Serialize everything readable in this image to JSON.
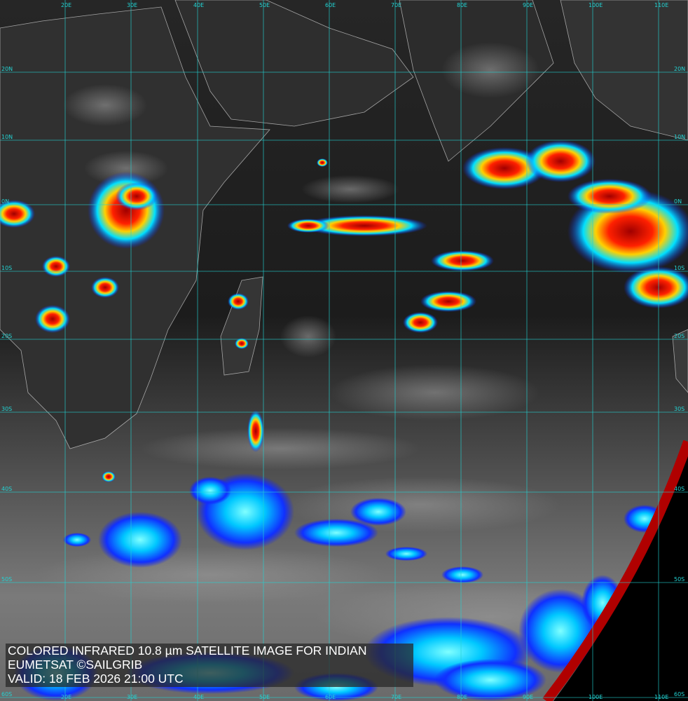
{
  "caption": {
    "line1": "COLORED INFRARED 10.8 µm SATELLITE IMAGE FOR INDIAN",
    "line2": "EUMETSAT ©SAILGRIB",
    "line3": "VALID:  18 FEB 2026 21:00 UTC"
  },
  "grid": {
    "color": "#22d3d3",
    "longitude_labels": [
      "20E",
      "30E",
      "40E",
      "50E",
      "60E",
      "70E",
      "80E",
      "90E",
      "100E",
      "110E"
    ],
    "latitude_labels": [
      "20N",
      "10N",
      "0N",
      "10S",
      "20S",
      "30S",
      "40S",
      "50S",
      "60S"
    ]
  },
  "colors": {
    "coastline": "#d8d8d8",
    "earth_limb": "#b00000",
    "cloud_scale": [
      "#1020ff",
      "#00e0ff",
      "#ffff00",
      "#ff8000",
      "#e00000",
      "#800000"
    ]
  }
}
